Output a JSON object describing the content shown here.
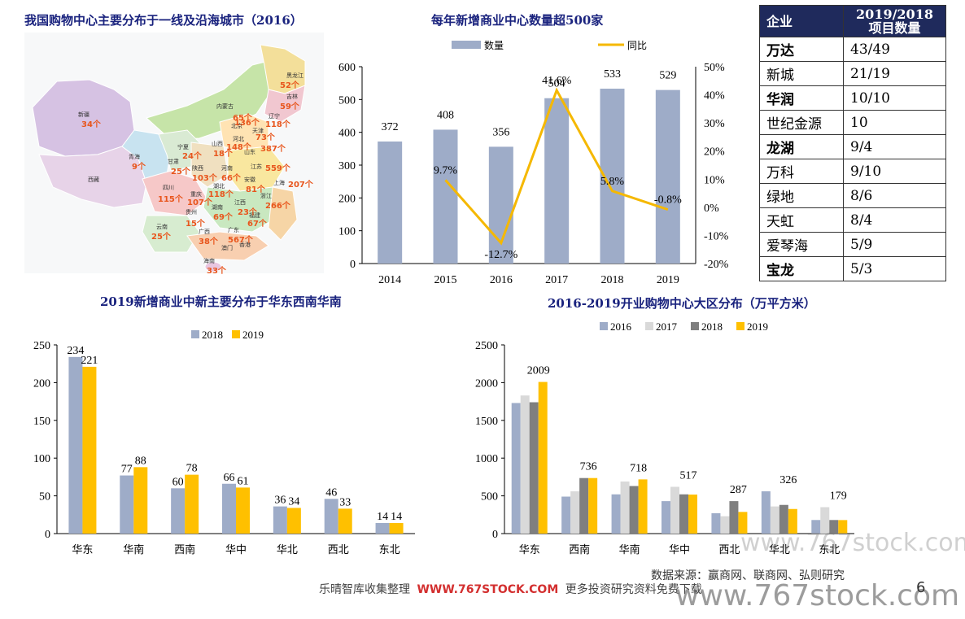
{
  "map": {
    "title": "我国购物中心主要分布于一线及沿海城市（2016）",
    "provinces": [
      {
        "name": "新疆",
        "value": "34个"
      },
      {
        "name": "西藏",
        "value": ""
      },
      {
        "name": "青海",
        "value": "9个"
      },
      {
        "name": "甘肃",
        "value": "25个"
      },
      {
        "name": "宁夏",
        "value": "24个"
      },
      {
        "name": "内蒙古",
        "value": "65个"
      },
      {
        "name": "黑龙江",
        "value": "52个"
      },
      {
        "name": "吉林",
        "value": "59个"
      },
      {
        "name": "辽宁",
        "value": "118个"
      },
      {
        "name": "北京",
        "value": "136个"
      },
      {
        "name": "天津",
        "value": "73个"
      },
      {
        "name": "河北",
        "value": "148个"
      },
      {
        "name": "山西",
        "value": "18个"
      },
      {
        "name": "山东",
        "value": "387个"
      },
      {
        "name": "陕西",
        "value": "103个"
      },
      {
        "name": "河南",
        "value": "66个"
      },
      {
        "name": "江苏",
        "value": "559个"
      },
      {
        "name": "安徽",
        "value": "81个"
      },
      {
        "name": "上海",
        "value": "207个"
      },
      {
        "name": "四川",
        "value": "115个"
      },
      {
        "name": "重庆",
        "value": "107个"
      },
      {
        "name": "湖北",
        "value": "118个"
      },
      {
        "name": "浙江",
        "value": "266个"
      },
      {
        "name": "湖南",
        "value": "69个"
      },
      {
        "name": "江西",
        "value": "23个"
      },
      {
        "name": "贵州",
        "value": "15个"
      },
      {
        "name": "云南",
        "value": "25个"
      },
      {
        "name": "广西",
        "value": "38个"
      },
      {
        "name": "广东",
        "value": "567个"
      },
      {
        "name": "福建",
        "value": "67个"
      },
      {
        "name": "香港",
        "value": ""
      },
      {
        "name": "澳门",
        "value": ""
      },
      {
        "name": "海南",
        "value": "33个"
      }
    ]
  },
  "table": {
    "header": [
      "企业",
      "2019/2018\n项目数量"
    ],
    "rows": [
      {
        "company": "万达",
        "count": "43/49",
        "bold": true
      },
      {
        "company": "新城",
        "count": "21/19",
        "bold": false
      },
      {
        "company": "华润",
        "count": "10/10",
        "bold": true
      },
      {
        "company": "世纪金源",
        "count": "10",
        "bold": false
      },
      {
        "company": "龙湖",
        "count": "9/4",
        "bold": true
      },
      {
        "company": "万科",
        "count": "9/10",
        "bold": false
      },
      {
        "company": "绿地",
        "count": "8/6",
        "bold": false
      },
      {
        "company": "天虹",
        "count": "8/4",
        "bold": false
      },
      {
        "company": "爱琴海",
        "count": "5/9",
        "bold": false
      },
      {
        "company": "宝龙",
        "count": "5/3",
        "bold": true
      }
    ]
  },
  "chart_data": [
    {
      "type": "bar",
      "title": "每年新增商业中心数量超500家",
      "categories": [
        "2014",
        "2015",
        "2016",
        "2017",
        "2018",
        "2019"
      ],
      "series": [
        {
          "name": "数量",
          "type": "bar",
          "values": [
            372,
            408,
            356,
            504,
            533,
            529
          ],
          "labels": [
            "372",
            "408",
            "356",
            "504",
            "533",
            "529"
          ],
          "color": "#9eacc8"
        },
        {
          "name": "同比",
          "type": "line",
          "axis": "right",
          "values": [
            null,
            9.7,
            -12.7,
            41.6,
            5.8,
            -0.8
          ],
          "labels": [
            "",
            "9.7%",
            "-12.7%",
            "41.6%",
            "5.8%",
            "-0.8%"
          ],
          "color": "#f5b800"
        }
      ],
      "ylim": [
        0,
        600
      ],
      "yticks": [
        "0",
        "100",
        "200",
        "300",
        "400",
        "500",
        "600"
      ],
      "y2lim": [
        -20,
        50
      ],
      "y2ticks": [
        "-20%",
        "-10%",
        "0%",
        "10%",
        "20%",
        "30%",
        "40%",
        "50%"
      ],
      "legend": "top"
    },
    {
      "type": "bar",
      "title": "2019新增商业中新主要分布于华东西南华南",
      "categories": [
        "华东",
        "华南",
        "西南",
        "华中",
        "华北",
        "西北",
        "东北"
      ],
      "series": [
        {
          "name": "2018",
          "values": [
            234,
            77,
            60,
            66,
            36,
            46,
            14
          ],
          "color": "#9eacc8"
        },
        {
          "name": "2019",
          "values": [
            221,
            88,
            78,
            61,
            34,
            33,
            14
          ],
          "color": "#ffc000"
        }
      ],
      "ylim": [
        0,
        250
      ],
      "yticks": [
        "0",
        "50",
        "100",
        "150",
        "200",
        "250"
      ],
      "legend": "top"
    },
    {
      "type": "bar",
      "title": "2016-2019开业购物中心大区分布（万平方米）",
      "categories": [
        "华东",
        "西南",
        "华南",
        "华中",
        "西北",
        "华北",
        "东北"
      ],
      "series": [
        {
          "name": "2016",
          "values": [
            1730,
            490,
            520,
            430,
            270,
            560,
            180
          ],
          "color": "#9eacc8"
        },
        {
          "name": "2017",
          "values": [
            1830,
            560,
            690,
            620,
            230,
            360,
            350
          ],
          "color": "#d9d9d9"
        },
        {
          "name": "2018",
          "values": [
            1740,
            736,
            630,
            520,
            430,
            380,
            180
          ],
          "color": "#7f7f7f"
        },
        {
          "name": "2019",
          "values": [
            2009,
            736,
            718,
            517,
            287,
            326,
            179
          ],
          "color": "#ffc000"
        }
      ],
      "labels_2019": [
        "2009",
        "736",
        "718",
        "517",
        "287",
        "326",
        "179"
      ],
      "ylim": [
        0,
        2500
      ],
      "yticks": [
        "0",
        "500",
        "1000",
        "1500",
        "2000",
        "2500"
      ],
      "legend": "top"
    }
  ],
  "footer": {
    "source": "数据来源：赢商网、联商网、弘则研究",
    "brand_cn": "乐晴智库收集整理",
    "brand_url": "WWW.767STOCK.COM",
    "brand_tail": "更多投资研究资料免费下载",
    "watermark": "www.767stock.com",
    "page": "6"
  }
}
